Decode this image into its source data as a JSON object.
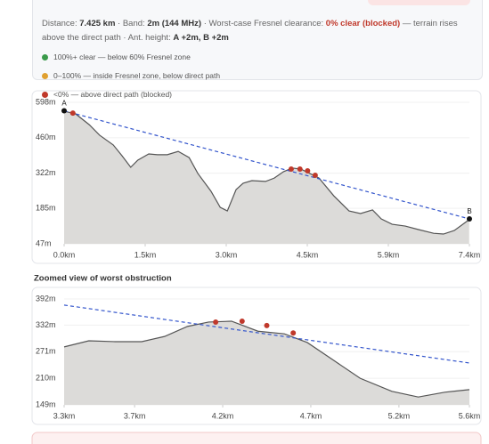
{
  "info": {
    "line1": [
      "Distance:",
      "7.425 km",
      "· Band:",
      "2m (144 MHz)",
      "· Worst-case Fresnel clearance:",
      "0% clear (blocked)",
      "— terrain rises above the direct path · Ant. height:",
      "A +2m, B +2m"
    ]
  },
  "legend": [
    {
      "label": "100%+ clear — below 60% Fresnel zone",
      "color": "#3a9a4a"
    },
    {
      "label": "0–100% — inside Fresnel zone, below direct path",
      "color": "#e0a030"
    },
    {
      "label": "<0% — above direct path (blocked)",
      "color": "#c0392b"
    }
  ],
  "chart_data": [
    {
      "type": "line",
      "grid": true,
      "color": "#555555",
      "fill": "#dcdbd9",
      "x": [
        0,
        0.21,
        0.46,
        0.65,
        0.9,
        1.06,
        1.22,
        1.35,
        1.55,
        1.71,
        1.89,
        2.09,
        2.29,
        2.45,
        2.69,
        2.86,
        2.99,
        3.15,
        3.28,
        3.44,
        3.69,
        3.85,
        4.02,
        4.18,
        4.34,
        4.5,
        4.67,
        4.94,
        5.22,
        5.43,
        5.65,
        5.81,
        6.01,
        6.25,
        6.5,
        6.77,
        6.95,
        7.15,
        7.42
      ],
      "values": [
        563,
        553,
        511,
        470,
        432,
        390,
        345,
        373,
        397,
        394,
        394,
        407,
        383,
        321,
        252,
        189,
        175,
        258,
        283,
        293,
        290,
        303,
        328,
        342,
        338,
        321,
        303,
        234,
        175,
        165,
        179,
        144,
        123,
        116,
        102,
        88,
        85,
        99,
        141
      ],
      "direct_path": {
        "x": [
          0,
          7.425
        ],
        "values": [
          565,
          144
        ],
        "color": "#3355cc"
      },
      "points": {
        "x": [
          0.16,
          4.16,
          4.32,
          4.46,
          4.6
        ],
        "values": [
          556,
          338,
          338,
          331,
          314
        ],
        "color": "#c0392b"
      },
      "endpoints": [
        {
          "label": "A",
          "x": 0,
          "value": 565
        },
        {
          "label": "B",
          "x": 7.425,
          "value": 144
        }
      ],
      "xlim": [
        0,
        7.425
      ],
      "ylim": [
        47,
        598
      ],
      "xticks": [
        {
          "value": 0,
          "label": "0.0km"
        },
        {
          "value": 1.485,
          "label": "1.5km"
        },
        {
          "value": 2.97,
          "label": "3.0km"
        },
        {
          "value": 4.455,
          "label": "4.5km"
        },
        {
          "value": 5.94,
          "label": "5.9km"
        },
        {
          "value": 7.425,
          "label": "7.4km"
        }
      ],
      "yticks": [
        {
          "value": 598,
          "label": "598m"
        },
        {
          "value": 460,
          "label": "460m"
        },
        {
          "value": 322,
          "label": "322m"
        },
        {
          "value": 185,
          "label": "185m"
        },
        {
          "value": 47,
          "label": "47m"
        }
      ]
    },
    {
      "type": "line",
      "grid": true,
      "title": "Zoomed view of worst obstruction",
      "color": "#555555",
      "fill": "#dcdbd9",
      "x": [
        3.3,
        3.44,
        3.59,
        3.74,
        3.87,
        4.0,
        4.12,
        4.25,
        4.4,
        4.55,
        4.68,
        4.83,
        4.98,
        5.16,
        5.31,
        5.46,
        5.6
      ],
      "values": [
        282,
        296,
        294,
        294,
        306,
        329,
        339,
        341,
        318,
        312,
        292,
        251,
        210,
        180,
        167,
        178,
        184
      ],
      "direct_path": {
        "x": [
          3.3,
          5.6
        ],
        "values": [
          378,
          245
        ],
        "color": "#3355cc"
      },
      "points": {
        "x": [
          4.16,
          4.31,
          4.45,
          4.6
        ],
        "values": [
          339,
          341,
          331,
          314
        ],
        "color": "#c0392b"
      },
      "xlim": [
        3.3,
        5.6
      ],
      "ylim": [
        149,
        392
      ],
      "xticks": [
        {
          "value": 3.3,
          "label": "3.3km"
        },
        {
          "value": 3.7,
          "label": "3.7km"
        },
        {
          "value": 4.2,
          "label": "4.2km"
        },
        {
          "value": 4.7,
          "label": "4.7km"
        },
        {
          "value": 5.2,
          "label": "5.2km"
        },
        {
          "value": 5.6,
          "label": "5.6km"
        }
      ],
      "yticks": [
        {
          "value": 392,
          "label": "392m"
        },
        {
          "value": 332,
          "label": "332m"
        },
        {
          "value": 271,
          "label": "271m"
        },
        {
          "value": 210,
          "label": "210m"
        },
        {
          "value": 149,
          "label": "149m"
        }
      ]
    }
  ]
}
